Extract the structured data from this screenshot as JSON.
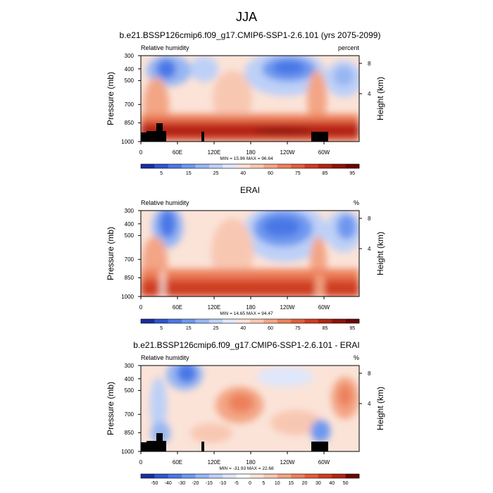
{
  "figure": {
    "title": "JJA"
  },
  "chart_data": [
    {
      "type": "heatmap",
      "title": "b.e21.BSSP126cmip6.f09_g17.CMIP6-SSP1-2.6.101 (yrs 2075-2099)",
      "variable": "Relative humidity",
      "units": "percent",
      "xlabel": "",
      "ylabel": "Pressure (mb)",
      "ylabel_right": "Height (km)",
      "x_ticks": [
        "0",
        "60E",
        "120E",
        "180",
        "120W",
        "60W"
      ],
      "y_ticks": [
        "300",
        "400",
        "500",
        "700",
        "850",
        "1000"
      ],
      "y_ticks_right": [
        "8",
        "4"
      ],
      "stats": "MIN = 15.96  MAX = 96.64",
      "colorbar_labels": [
        "5",
        "15",
        "25",
        "40",
        "60",
        "75",
        "85",
        "95"
      ],
      "colorbar_colors": [
        "#1a2ea0",
        "#2f55cf",
        "#4a78e6",
        "#6e98ef",
        "#97b6f3",
        "#bdd0f7",
        "#dfe7fb",
        "#fbe3d8",
        "#f8c7b2",
        "#f3a585",
        "#ec815c",
        "#e25e3c",
        "#cf3c22",
        "#b32413",
        "#8e1208",
        "#6a0603"
      ],
      "grid": false,
      "min": 15.96,
      "max": 96.64
    },
    {
      "type": "heatmap",
      "title": "ERAI",
      "variable": "Relative humidity",
      "units": "%",
      "xlabel": "",
      "ylabel": "Pressure (mb)",
      "ylabel_right": "Height (km)",
      "x_ticks": [
        "0",
        "60E",
        "120E",
        "180",
        "120W",
        "60W"
      ],
      "y_ticks": [
        "300",
        "400",
        "500",
        "700",
        "850",
        "1000"
      ],
      "y_ticks_right": [
        "8",
        "4"
      ],
      "stats": "MIN = 14.65  MAX = 94.47",
      "colorbar_labels": [
        "5",
        "15",
        "25",
        "40",
        "60",
        "75",
        "85",
        "95"
      ],
      "colorbar_colors": [
        "#1a2ea0",
        "#2f55cf",
        "#4a78e6",
        "#6e98ef",
        "#97b6f3",
        "#bdd0f7",
        "#dfe7fb",
        "#fbe3d8",
        "#f8c7b2",
        "#f3a585",
        "#ec815c",
        "#e25e3c",
        "#cf3c22",
        "#b32413",
        "#8e1208",
        "#6a0603"
      ],
      "grid": false,
      "min": 14.65,
      "max": 94.47
    },
    {
      "type": "heatmap",
      "title": "b.e21.BSSP126cmip6.f09_g17.CMIP6-SSP1-2.6.101 - ERAI",
      "variable": "Relative humidity",
      "units": "%",
      "xlabel": "",
      "ylabel": "Pressure (mb)",
      "ylabel_right": "Height (km)",
      "x_ticks": [
        "0",
        "60E",
        "120E",
        "180",
        "120W",
        "60W"
      ],
      "y_ticks": [
        "300",
        "400",
        "500",
        "700",
        "850",
        "1000"
      ],
      "y_ticks_right": [
        "8",
        "4"
      ],
      "stats": "MIN = -31.93  MAX = 22.68",
      "colorbar_labels": [
        "-50",
        "-40",
        "-30",
        "-20",
        "-15",
        "-10",
        "-5",
        "0",
        "5",
        "10",
        "15",
        "20",
        "30",
        "40",
        "50"
      ],
      "colorbar_colors": [
        "#1a2ea0",
        "#2f55cf",
        "#4a78e6",
        "#6e98ef",
        "#97b6f3",
        "#bdd0f7",
        "#dfe7fb",
        "#ffffff",
        "#fbe3d8",
        "#f8c7b2",
        "#f3a585",
        "#ec815c",
        "#e25e3c",
        "#cf3c22",
        "#b32413",
        "#6a0603"
      ],
      "grid": false,
      "min": -31.93,
      "max": 22.68
    }
  ]
}
